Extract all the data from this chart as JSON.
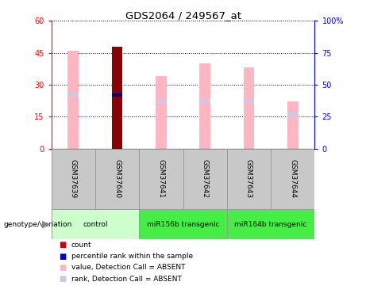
{
  "title": "GDS2064 / 249567_at",
  "samples": [
    "GSM37639",
    "GSM37640",
    "GSM37641",
    "GSM37642",
    "GSM37643",
    "GSM37644"
  ],
  "groups": [
    {
      "label": "control",
      "indices": [
        0,
        1
      ],
      "bg": "#CCFFCC"
    },
    {
      "label": "miR156b transgenic",
      "indices": [
        2,
        3
      ],
      "bg": "#44EE44"
    },
    {
      "label": "miR164b transgenic",
      "indices": [
        4,
        5
      ],
      "bg": "#44EE44"
    }
  ],
  "value_bars": [
    46,
    48,
    34,
    40,
    38,
    22
  ],
  "rank_bars": [
    25,
    25,
    22,
    22,
    22,
    16
  ],
  "count_bar_index": 1,
  "count_value": 48,
  "percentile_rank_value": 25,
  "value_color": "#FFB6C1",
  "rank_color": "#C8C8E8",
  "count_color": "#8B0000",
  "percentile_color": "#00008B",
  "ylim_left": [
    0,
    60
  ],
  "ylim_right": [
    0,
    100
  ],
  "yticks_left": [
    0,
    15,
    30,
    45,
    60
  ],
  "ytick_labels_left": [
    "0",
    "15",
    "30",
    "45",
    "60"
  ],
  "yticks_right": [
    0,
    25,
    50,
    75,
    100
  ],
  "ytick_labels_right": [
    "0",
    "25",
    "50",
    "75",
    "100%"
  ],
  "bar_width": 0.25,
  "legend_items": [
    {
      "label": "count",
      "color": "#CC0000"
    },
    {
      "label": "percentile rank within the sample",
      "color": "#0000CC"
    },
    {
      "label": "value, Detection Call = ABSENT",
      "color": "#FFB6C1"
    },
    {
      "label": "rank, Detection Call = ABSENT",
      "color": "#C8C8E8"
    }
  ],
  "label_box_color": "#C8C8C8",
  "sample_box_border": "#999999"
}
